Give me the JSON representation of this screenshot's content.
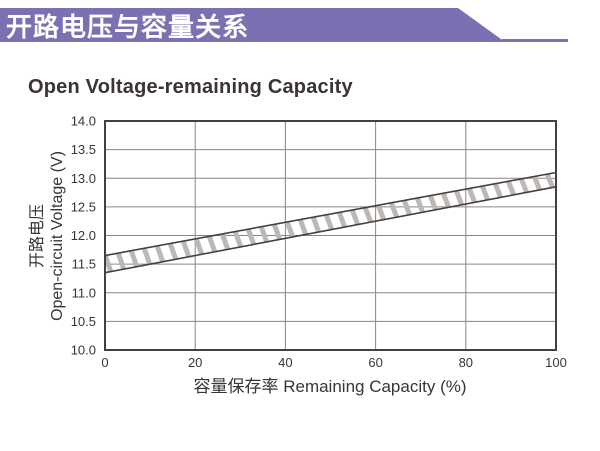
{
  "banner": {
    "title": "开路电压与容量关系",
    "bg_color": "#7a70b2",
    "text_color": "#ffffff"
  },
  "chart": {
    "title": "Open Voltage-remaining Capacity",
    "y_axis_label_cn": "开路电压",
    "y_axis_label_en": "Open-circuit Voltage (V)",
    "x_axis_label": "容量保存率 Remaining Capacity (%)"
  },
  "chart_data": {
    "type": "area",
    "title": "Open Voltage-remaining Capacity",
    "xlabel": "容量保存率 Remaining Capacity (%)",
    "ylabel": "开路电压 Open-circuit Voltage (V)",
    "xlim": [
      0,
      100
    ],
    "ylim": [
      10.0,
      14.0
    ],
    "xticks": [
      0,
      20,
      40,
      60,
      80,
      100
    ],
    "yticks": [
      10.0,
      10.5,
      11.0,
      11.5,
      12.0,
      12.5,
      13.0,
      13.5,
      14.0
    ],
    "grid": true,
    "legend": false,
    "band_series": [
      {
        "name": "upper_bound",
        "x": [
          0,
          100
        ],
        "y": [
          11.65,
          13.1
        ]
      },
      {
        "name": "lower_bound",
        "x": [
          0,
          100
        ],
        "y": [
          11.35,
          12.85
        ]
      }
    ],
    "band_style": {
      "hatch": "backslash-stripes",
      "stripe_color": "#bcb8b5",
      "edge_color": "#45403d",
      "stripe_spacing": 13,
      "stripe_width": 5
    },
    "colors": {
      "grid": "#8c8682",
      "border": "#45403d",
      "text": "#3a3432"
    }
  }
}
